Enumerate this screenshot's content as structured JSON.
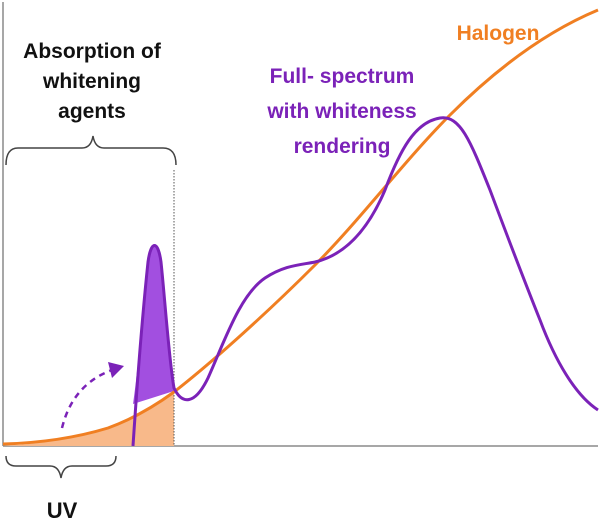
{
  "labels": {
    "absorption_line1": "Absorption of",
    "absorption_line2": "whitening",
    "absorption_line3": "agents",
    "halogen": "Halogen",
    "fullspectrum_line1": "Full- spectrum",
    "fullspectrum_line2": "with whiteness",
    "fullspectrum_line3": "rendering",
    "uv": "UV"
  },
  "colors": {
    "halogen": "#F07F22",
    "halogen_fill": "#F8B98A",
    "fullspectrum": "#7B22B8",
    "fullspectrum_fill": "#A24FE0",
    "axis": "#777777",
    "text": "#111111"
  }
}
